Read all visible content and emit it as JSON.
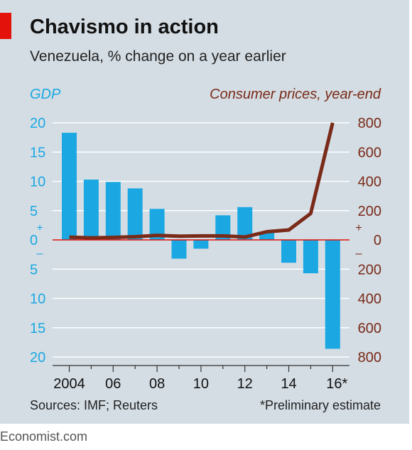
{
  "header": {
    "title": "Chavismo in action",
    "subtitle": "Venezuela, % change on a year earlier"
  },
  "footer": {
    "source": "Sources: IMF; Reuters",
    "footnote": "*Preliminary estimate",
    "brand": "Economist.com"
  },
  "colors": {
    "gdp_bar": "#1ba8e2",
    "cpi_line": "#7a2a18",
    "zero_line": "#e3120b",
    "panel": "#d4dde4",
    "brand_red": "#e3120b"
  },
  "chart_data": {
    "type": "bar",
    "x_tick_labels": [
      "2004",
      "06",
      "08",
      "10",
      "12",
      "14",
      "16*"
    ],
    "categories": [
      "2004",
      "2005",
      "2006",
      "2007",
      "2008",
      "2009",
      "2010",
      "2011",
      "2012",
      "2013",
      "2014",
      "2015",
      "2016"
    ],
    "left_axis": {
      "label": "GDP",
      "ylim": [
        -20,
        20
      ],
      "tick_labels": [
        "20",
        "15",
        "10",
        "5",
        "0",
        "5",
        "10",
        "15",
        "20"
      ],
      "tick_values": [
        20,
        15,
        10,
        5,
        0,
        -5,
        -10,
        -15,
        -20
      ],
      "plus_sign": "+",
      "minus_sign": "–"
    },
    "right_axis": {
      "label": "Consumer prices, year-end",
      "ylim": [
        -800,
        800
      ],
      "tick_labels": [
        "800",
        "600",
        "400",
        "200",
        "0",
        "200",
        "400",
        "600",
        "800"
      ],
      "tick_values": [
        800,
        600,
        400,
        200,
        0,
        -200,
        -400,
        -600,
        -800
      ],
      "plus_sign": "+",
      "minus_sign": "–"
    },
    "series": [
      {
        "type": "bar",
        "axis": "left",
        "values": [
          18.3,
          10.3,
          9.9,
          8.8,
          5.3,
          -3.2,
          -1.5,
          4.2,
          5.6,
          1.3,
          -3.9,
          -5.7,
          -18.6
        ]
      },
      {
        "type": "line",
        "axis": "right",
        "values": [
          19,
          14,
          17,
          22,
          31,
          25,
          27,
          27,
          20,
          56,
          68,
          181,
          800
        ]
      }
    ],
    "grid": true
  }
}
